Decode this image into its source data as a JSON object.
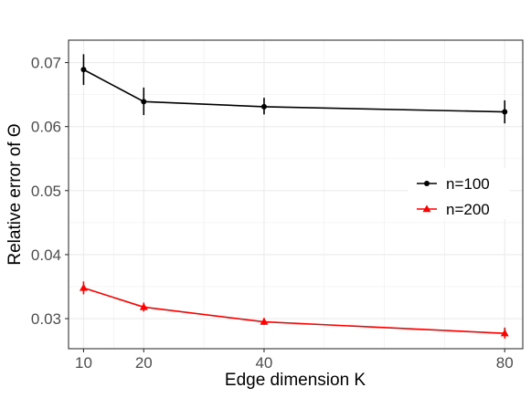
{
  "chart_data": {
    "type": "line",
    "xlabel": "Edge dimension K",
    "ylabel": "Relative error of Θ",
    "xlim": [
      7.5,
      83
    ],
    "ylim": [
      0.0253,
      0.0735
    ],
    "x_ticks": [
      10,
      20,
      40,
      80
    ],
    "x_tick_labels": [
      "10",
      "20",
      "40",
      "80"
    ],
    "y_ticks": [
      0.03,
      0.04,
      0.05,
      0.06,
      0.07
    ],
    "y_tick_labels": [
      "0.03",
      "0.04",
      "0.05",
      "0.06",
      "0.07"
    ],
    "x_minor_grid": [
      15,
      30,
      50,
      60,
      70
    ],
    "grid": true,
    "legend_position": "right",
    "series": [
      {
        "name": "n=100",
        "color": "#000000",
        "marker": "circle",
        "x": [
          10,
          20,
          40,
          80
        ],
        "values": [
          0.0689,
          0.0639,
          0.0631,
          0.0623
        ],
        "error_low": [
          0.0665,
          0.0618,
          0.0619,
          0.0605
        ],
        "error_high": [
          0.0713,
          0.0661,
          0.0645,
          0.0641
        ]
      },
      {
        "name": "n=200",
        "color": "#ff0000",
        "marker": "triangle",
        "x": [
          10,
          20,
          40,
          80
        ],
        "values": [
          0.0348,
          0.0318,
          0.0295,
          0.0277
        ],
        "error_low": [
          0.0338,
          0.0311,
          0.029,
          0.0269
        ],
        "error_high": [
          0.0358,
          0.0325,
          0.0301,
          0.0286
        ]
      }
    ]
  }
}
